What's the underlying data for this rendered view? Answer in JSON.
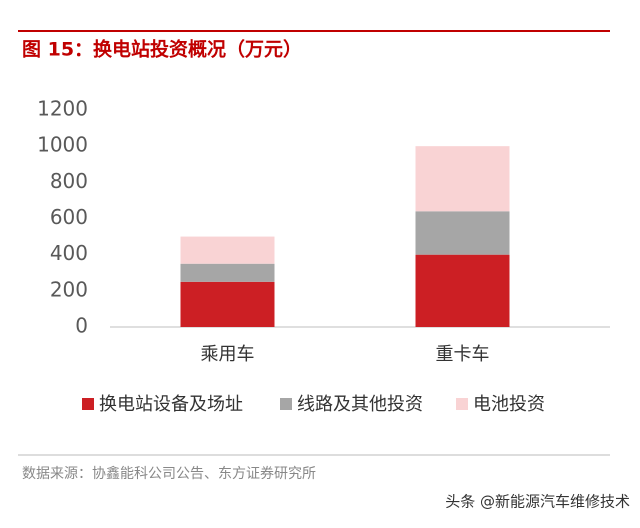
{
  "chart_data": {
    "type": "stacked_bar",
    "title": "图 15：换电站投资概况（万元）",
    "categories": [
      "乘用车",
      "重卡车"
    ],
    "series": [
      {
        "name": "换电站设备及场址",
        "color": "#cc1f24",
        "values": [
          250,
          400
        ]
      },
      {
        "name": "线路及其他投资",
        "color": "#a6a6a6",
        "values": [
          100,
          240
        ]
      },
      {
        "name": "电池投资",
        "color": "#f9d3d4",
        "values": [
          150,
          360
        ]
      }
    ],
    "ylim": [
      0,
      1200
    ],
    "yticks": [
      0,
      200,
      400,
      600,
      800,
      1000,
      1200
    ],
    "grid": false,
    "legend": "bottom",
    "source": "数据来源：协鑫能科公司公告、东方证券研究所",
    "watermark": "头条 @新能源汽车维修技术"
  }
}
